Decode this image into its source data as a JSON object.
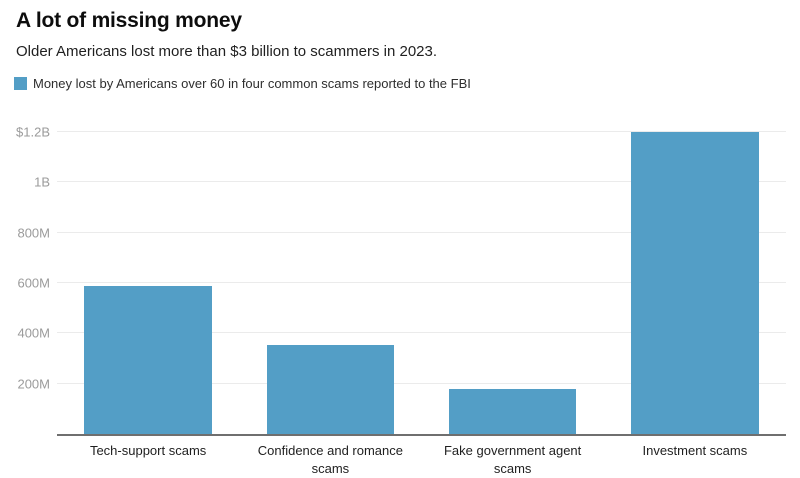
{
  "header": {
    "title": "A lot of missing money",
    "subtitle": "Older Americans lost more than $3 billion to scammers in 2023."
  },
  "legend": {
    "label": "Money lost by Americans over 60 in four common scams reported to the FBI",
    "swatch_color": "#539ec6"
  },
  "chart_data": {
    "type": "bar",
    "title": "A lot of missing money",
    "subtitle": "Older Americans lost more than $3 billion to scammers in 2023.",
    "series_name": "Money lost by Americans over 60 in four common scams reported to the FBI",
    "categories": [
      "Tech-support scams",
      "Confidence and romance scams",
      "Fake government agent scams",
      "Investment scams"
    ],
    "values": [
      590,
      355,
      180,
      1200
    ],
    "unit": "USD millions",
    "xlabel": "",
    "ylabel": "",
    "ylim": [
      0,
      1240
    ],
    "yticks": [
      {
        "label": "$1.2B",
        "value": 1200
      },
      {
        "label": "1B",
        "value": 1000
      },
      {
        "label": "800M",
        "value": 800
      },
      {
        "label": "600M",
        "value": 600
      },
      {
        "label": "400M",
        "value": 400
      },
      {
        "label": "200M",
        "value": 200
      }
    ],
    "grid": "horizontal",
    "legend_position": "top",
    "colors": {
      "bar": "#539ec6",
      "gridline": "#ebebeb",
      "axis_line": "#6f6f6f",
      "ytick_text": "#9b9b9b",
      "xtick_text": "#1f1f1f"
    }
  }
}
